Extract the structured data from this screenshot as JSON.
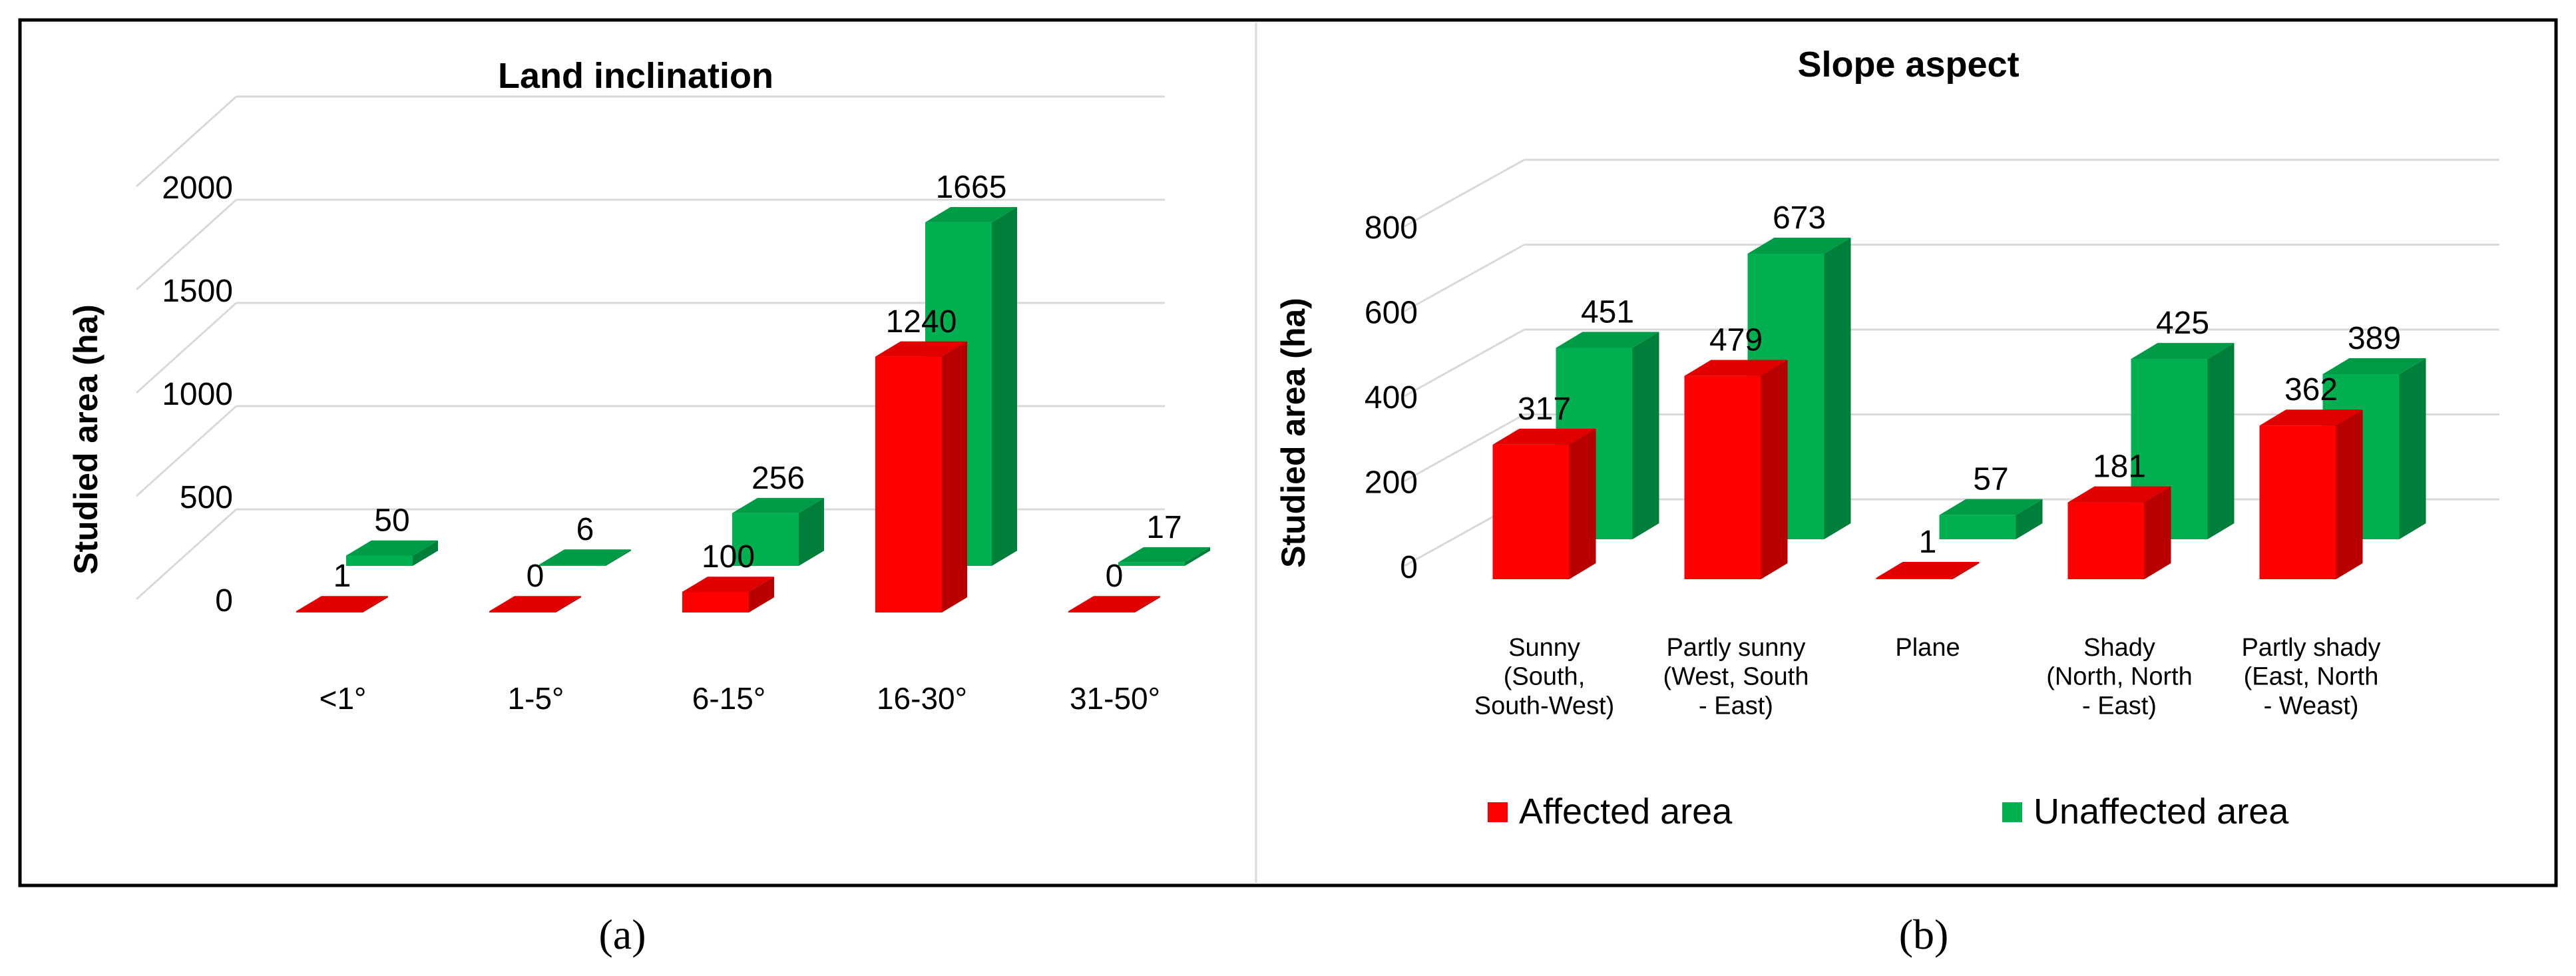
{
  "colors": {
    "affected": "#ff0000",
    "unaffected": "#00b050",
    "grid": "#d9d9d9",
    "text": "#000000",
    "border": "#000000"
  },
  "legend": {
    "affected": "Affected area",
    "unaffected": "Unaffected area"
  },
  "captions": {
    "a": "(a)",
    "b": "(b)"
  },
  "chart_data": [
    {
      "type": "bar",
      "title": "Land inclination",
      "xlabel": "",
      "ylabel": "Studied area (ha)",
      "ylim": [
        0,
        2000
      ],
      "yticks": [
        "0",
        "500",
        "1000",
        "1500",
        "2000"
      ],
      "categories": [
        "<1°",
        "1-5°",
        "6-15°",
        "16-30°",
        "31-50°"
      ],
      "series": [
        {
          "name": "Affected area",
          "values": [
            1,
            0,
            100,
            1240,
            0
          ],
          "labels": [
            "1",
            "0",
            "100",
            "1240",
            "0"
          ]
        },
        {
          "name": "Unaffected area",
          "values": [
            50,
            6,
            256,
            1665,
            17
          ],
          "labels": [
            "50",
            "6",
            "256",
            "1665",
            "17"
          ]
        }
      ],
      "grid": true,
      "style": "3d-clustered-column"
    },
    {
      "type": "bar",
      "title": "Slope aspect",
      "xlabel": "",
      "ylabel": "Studied area (ha)",
      "ylim": [
        0,
        800
      ],
      "yticks": [
        "0",
        "200",
        "400",
        "600",
        "800"
      ],
      "categories": [
        [
          "Sunny",
          "(South,",
          "South-West)"
        ],
        [
          "Partly sunny",
          "(West, South",
          "- East)"
        ],
        [
          "Plane"
        ],
        [
          "Shady",
          "(North, North",
          "- East)"
        ],
        [
          "Partly shady",
          "(East, North",
          "- Weast)"
        ]
      ],
      "series": [
        {
          "name": "Affected area",
          "values": [
            317,
            479,
            1,
            181,
            362
          ],
          "labels": [
            "317",
            "479",
            "1",
            "181",
            "362"
          ]
        },
        {
          "name": "Unaffected area",
          "values": [
            451,
            673,
            57,
            425,
            389
          ],
          "labels": [
            "451",
            "673",
            "57",
            "425",
            "389"
          ]
        }
      ],
      "grid": true,
      "legend": "bottom",
      "style": "3d-clustered-column"
    }
  ]
}
